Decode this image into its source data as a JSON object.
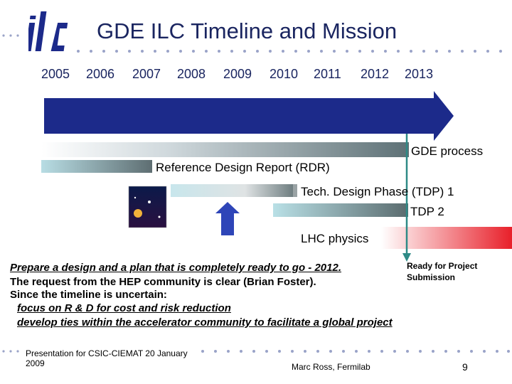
{
  "slide": {
    "title": "GDE ILC Timeline and Mission",
    "logo_text": "ilc",
    "years": [
      "2005",
      "2006",
      "2007",
      "2008",
      "2009",
      "2010",
      "2011",
      "2012",
      "2013"
    ],
    "bars": {
      "gde_process": "GDE process",
      "rdr": "Reference Design Report (RDR)",
      "tdp1": "Tech. Design Phase (TDP) 1",
      "tdp2": "TDP 2",
      "lhc": "LHC physics"
    },
    "milestone": "Ready for Project Submission",
    "text_lines": [
      "Prepare a design and a plan that is completely ready to go - 2012.",
      "The request from the HEP community is clear (Brian Foster).",
      "Since the timeline is uncertain:",
      "focus on R & D for cost and risk reduction",
      "develop ties within the accelerator community to facilitate a global project"
    ],
    "footer": {
      "presentation": "Presentation for CSIC-CIEMAT 20 January 2009",
      "author": "Marc Ross, Fermilab",
      "page": "9"
    },
    "colors": {
      "title": "#1a2560",
      "arrow": "#1c2a8a",
      "accent_teal": "#2e8a86",
      "lhc_red": "#e8202a"
    }
  }
}
